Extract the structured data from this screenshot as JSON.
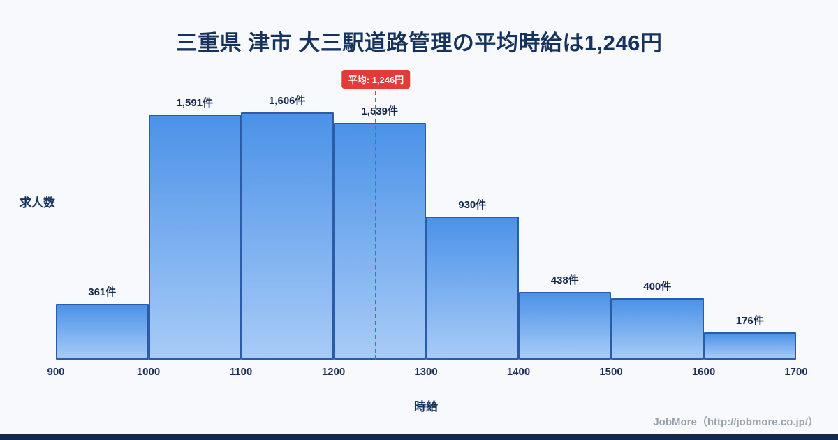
{
  "title": "三重県 津市 大三駅道路管理の平均時給は1,246円",
  "footer": "JobMore（http://jobmore.co.jp/）",
  "colors": {
    "bar_top": "#4b92e8",
    "bar_bottom": "#a8cbf7",
    "bar_border": "#2a5ca8",
    "accent_red": "#e53a3a",
    "title_navy": "#16335e",
    "footer_bar_navy": "#16294a",
    "background": "#f7f9fc"
  },
  "chart_data": {
    "type": "bar",
    "subtype": "histogram",
    "title": "三重県 津市 大三駅道路管理の平均時給は1,246円",
    "xlabel": "時給",
    "ylabel": "求人数",
    "x_range": [
      900,
      1700
    ],
    "x_ticks": [
      "900",
      "1000",
      "1100",
      "1200",
      "1300",
      "1400",
      "1500",
      "1600",
      "1700"
    ],
    "bin_edges": [
      900,
      1000,
      1100,
      1200,
      1300,
      1400,
      1500,
      1600,
      1700
    ],
    "values": [
      361,
      1591,
      1606,
      1539,
      930,
      438,
      400,
      176
    ],
    "labels": [
      "361件",
      "1,591件",
      "1,606件",
      "1,539件",
      "930件",
      "438件",
      "400件",
      "176件"
    ],
    "average": {
      "value": 1246,
      "label": "平均: 1,246円"
    },
    "grid": false,
    "legend": "none"
  }
}
